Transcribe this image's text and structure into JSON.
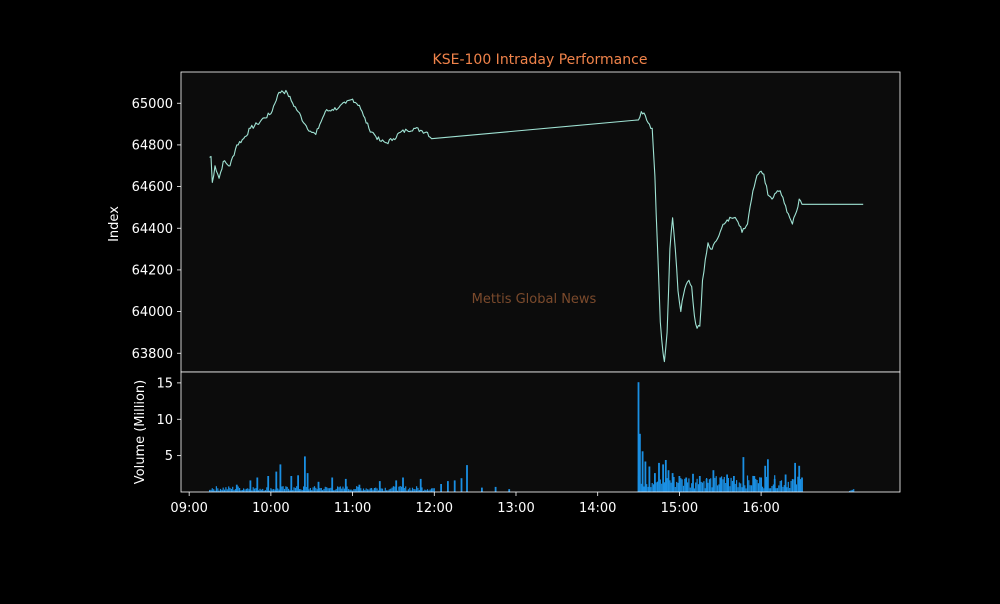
{
  "chart_data": {
    "type": "line",
    "title": "KSE-100 Intraday Performance",
    "watermark": "Mettis Global News",
    "colors": {
      "background": "#000000",
      "panel": "#0c0c0c",
      "frame": "#ffffff",
      "price_line": "#9fe2d3",
      "volume_bars": "#1a8fe3",
      "title": "#f0834a",
      "watermark": "#7b4a2c",
      "text": "#ffffff"
    },
    "x_tick_labels": [
      "09:00",
      "10:00",
      "11:00",
      "12:00",
      "13:00",
      "14:00",
      "15:00",
      "16:00"
    ],
    "x_tick_hours": [
      9,
      10,
      11,
      12,
      13,
      14,
      15,
      16
    ],
    "xlim_hours": [
      8.9,
      17.7
    ],
    "price_panel": {
      "ylabel": "Index",
      "ylim": [
        63710,
        65150
      ],
      "y_ticks": [
        63800,
        64000,
        64200,
        64400,
        64600,
        64800,
        65000
      ],
      "series": [
        {
          "points": [
            [
              "09:15",
              64740
            ],
            [
              "09:16",
              64745
            ],
            [
              "09:17",
              64620
            ],
            [
              "09:19",
              64700
            ],
            [
              "09:22",
              64640
            ],
            [
              "09:25",
              64720
            ],
            [
              "09:30",
              64700
            ],
            [
              "09:35",
              64800
            ],
            [
              "09:40",
              64830
            ],
            [
              "09:45",
              64880
            ],
            [
              "09:50",
              64900
            ],
            [
              "09:55",
              64930
            ],
            [
              "10:00",
              64950
            ],
            [
              "10:05",
              65040
            ],
            [
              "10:08",
              65060
            ],
            [
              "10:12",
              65050
            ],
            [
              "10:16",
              65000
            ],
            [
              "10:20",
              64960
            ],
            [
              "10:25",
              64900
            ],
            [
              "10:30",
              64860
            ],
            [
              "10:33",
              64850
            ],
            [
              "10:36",
              64900
            ],
            [
              "10:40",
              64960
            ],
            [
              "10:45",
              64970
            ],
            [
              "10:50",
              64980
            ],
            [
              "10:55",
              65000
            ],
            [
              "11:00",
              65020
            ],
            [
              "11:05",
              64990
            ],
            [
              "11:08",
              64940
            ],
            [
              "11:12",
              64880
            ],
            [
              "11:16",
              64850
            ],
            [
              "11:20",
              64820
            ],
            [
              "11:25",
              64810
            ],
            [
              "11:30",
              64830
            ],
            [
              "11:35",
              64860
            ],
            [
              "11:40",
              64870
            ],
            [
              "11:45",
              64880
            ],
            [
              "11:50",
              64870
            ],
            [
              "11:55",
              64860
            ],
            [
              "11:58",
              64830
            ],
            [
              "14:30",
              64920
            ],
            [
              "14:32",
              64960
            ],
            [
              "14:35",
              64940
            ],
            [
              "14:38",
              64900
            ],
            [
              "14:40",
              64880
            ],
            [
              "14:42",
              64650
            ],
            [
              "14:44",
              64300
            ],
            [
              "14:46",
              63950
            ],
            [
              "14:48",
              63800
            ],
            [
              "14:49",
              63760
            ],
            [
              "14:51",
              63900
            ],
            [
              "14:53",
              64300
            ],
            [
              "14:55",
              64450
            ],
            [
              "14:57",
              64300
            ],
            [
              "14:59",
              64100
            ],
            [
              "15:01",
              64000
            ],
            [
              "15:03",
              64080
            ],
            [
              "15:05",
              64130
            ],
            [
              "15:07",
              64150
            ],
            [
              "15:09",
              64120
            ],
            [
              "15:11",
              63980
            ],
            [
              "15:13",
              63920
            ],
            [
              "15:15",
              63930
            ],
            [
              "15:17",
              64150
            ],
            [
              "15:19",
              64250
            ],
            [
              "15:21",
              64330
            ],
            [
              "15:23",
              64300
            ],
            [
              "15:25",
              64320
            ],
            [
              "15:28",
              64350
            ],
            [
              "15:31",
              64400
            ],
            [
              "15:35",
              64440
            ],
            [
              "15:40",
              64450
            ],
            [
              "15:43",
              64430
            ],
            [
              "15:46",
              64380
            ],
            [
              "15:50",
              64420
            ],
            [
              "15:53",
              64540
            ],
            [
              "15:56",
              64630
            ],
            [
              "15:59",
              64670
            ],
            [
              "16:02",
              64660
            ],
            [
              "16:05",
              64560
            ],
            [
              "16:08",
              64540
            ],
            [
              "16:11",
              64570
            ],
            [
              "16:14",
              64580
            ],
            [
              "16:17",
              64520
            ],
            [
              "16:20",
              64470
            ],
            [
              "16:23",
              64420
            ],
            [
              "16:26",
              64480
            ],
            [
              "16:28",
              64540
            ],
            [
              "16:30",
              64515
            ],
            [
              "17:15",
              64515
            ]
          ]
        }
      ]
    },
    "volume_panel": {
      "ylabel": "Volume (Million)",
      "ylim": [
        0,
        16.5
      ],
      "y_ticks": [
        5,
        10,
        15
      ],
      "session_windows": [
        {
          "start": "09:15",
          "end": "12:00",
          "base": 0.5
        },
        {
          "start": "14:30",
          "end": "16:30",
          "base": 1.4
        },
        {
          "start": "17:05",
          "end": "17:08",
          "base": 0.3
        }
      ],
      "spikes": [
        [
          "09:35",
          1.0
        ],
        [
          "09:45",
          1.6
        ],
        [
          "09:50",
          2.0
        ],
        [
          "09:58",
          2.2
        ],
        [
          "10:04",
          2.8
        ],
        [
          "10:07",
          3.8
        ],
        [
          "10:15",
          2.2
        ],
        [
          "10:20",
          2.3
        ],
        [
          "10:25",
          4.9
        ],
        [
          "10:27",
          2.6
        ],
        [
          "10:35",
          1.4
        ],
        [
          "10:45",
          2.0
        ],
        [
          "10:55",
          1.8
        ],
        [
          "11:05",
          1.0
        ],
        [
          "11:20",
          1.5
        ],
        [
          "11:32",
          1.6
        ],
        [
          "11:37",
          2.0
        ],
        [
          "11:50",
          1.8
        ],
        [
          "12:05",
          1.1
        ],
        [
          "12:10",
          1.5
        ],
        [
          "12:15",
          1.6
        ],
        [
          "12:20",
          1.9
        ],
        [
          "12:24",
          3.7
        ],
        [
          "12:35",
          0.6
        ],
        [
          "12:45",
          0.7
        ],
        [
          "12:55",
          0.4
        ],
        [
          "14:30",
          15.1
        ],
        [
          "14:31",
          8.0
        ],
        [
          "14:33",
          5.6
        ],
        [
          "14:35",
          4.2
        ],
        [
          "14:38",
          3.5
        ],
        [
          "14:42",
          2.6
        ],
        [
          "14:45",
          4.0
        ],
        [
          "14:48",
          3.8
        ],
        [
          "14:50",
          4.4
        ],
        [
          "14:52",
          3.0
        ],
        [
          "14:55",
          2.6
        ],
        [
          "15:00",
          2.2
        ],
        [
          "15:05",
          2.0
        ],
        [
          "15:10",
          2.5
        ],
        [
          "15:15",
          2.2
        ],
        [
          "15:20",
          1.8
        ],
        [
          "15:25",
          3.0
        ],
        [
          "15:30",
          2.0
        ],
        [
          "15:35",
          2.4
        ],
        [
          "15:40",
          2.2
        ],
        [
          "15:47",
          4.8
        ],
        [
          "15:55",
          2.2
        ],
        [
          "16:00",
          2.0
        ],
        [
          "16:03",
          3.6
        ],
        [
          "16:05",
          4.5
        ],
        [
          "16:10",
          1.8
        ],
        [
          "16:18",
          2.4
        ],
        [
          "16:25",
          4.0
        ],
        [
          "16:28",
          3.6
        ],
        [
          "16:30",
          2.0
        ]
      ]
    }
  }
}
